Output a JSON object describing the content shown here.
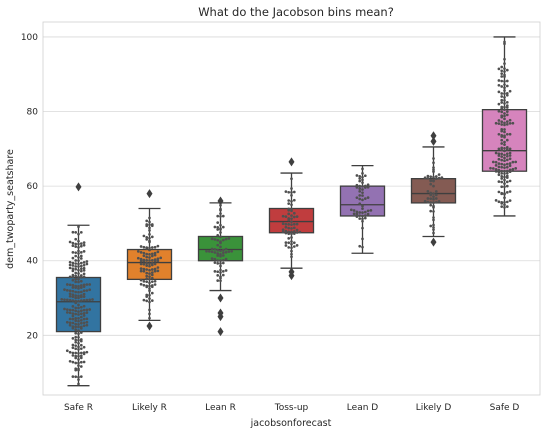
{
  "chart_data": {
    "type": "box",
    "title": "What do the Jacobson bins mean?",
    "xlabel": "jacobsonforecast",
    "ylabel": "dem_twoparty_seatshare",
    "ylim": [
      4,
      104
    ],
    "yticks": [
      20,
      40,
      60,
      80,
      100
    ],
    "grid": true,
    "categories": [
      "Safe R",
      "Likely R",
      "Lean R",
      "Toss-up",
      "Lean D",
      "Likely D",
      "Safe D"
    ],
    "colors": [
      "#3274a1",
      "#e1812c",
      "#3a923a",
      "#c03d3e",
      "#9372b2",
      "#845b53",
      "#d684bd"
    ],
    "boxes": [
      {
        "category": "Safe R",
        "whislo": 6.5,
        "q1": 21.0,
        "median": 29.0,
        "q3": 35.5,
        "whishi": 49.5,
        "fliers": [
          59.8
        ],
        "n": 230
      },
      {
        "category": "Likely R",
        "whislo": 24.0,
        "q1": 35.0,
        "median": 39.5,
        "q3": 43.0,
        "whishi": 54.0,
        "fliers": [
          22.5,
          58.0
        ],
        "n": 110
      },
      {
        "category": "Lean R",
        "whislo": 32.0,
        "q1": 40.0,
        "median": 43.0,
        "q3": 46.5,
        "whishi": 55.5,
        "fliers": [
          21.0,
          25.0,
          26.0,
          30.0,
          56.0
        ],
        "n": 70
      },
      {
        "category": "Toss-up",
        "whislo": 38.0,
        "q1": 47.5,
        "median": 50.5,
        "q3": 54.0,
        "whishi": 63.5,
        "fliers": [
          36.0,
          37.0,
          66.5
        ],
        "n": 65
      },
      {
        "category": "Lean D",
        "whislo": 42.0,
        "q1": 52.0,
        "median": 55.0,
        "q3": 60.0,
        "whishi": 65.5,
        "fliers": [],
        "n": 55
      },
      {
        "category": "Likely D",
        "whislo": 46.5,
        "q1": 55.5,
        "median": 58.0,
        "q3": 62.0,
        "whishi": 70.5,
        "fliers": [
          45.0,
          72.0,
          73.5
        ],
        "n": 50
      },
      {
        "category": "Safe D",
        "whislo": 52.0,
        "q1": 64.0,
        "median": 69.5,
        "q3": 80.5,
        "whishi": 100.0,
        "fliers": [],
        "n": 170
      }
    ]
  }
}
